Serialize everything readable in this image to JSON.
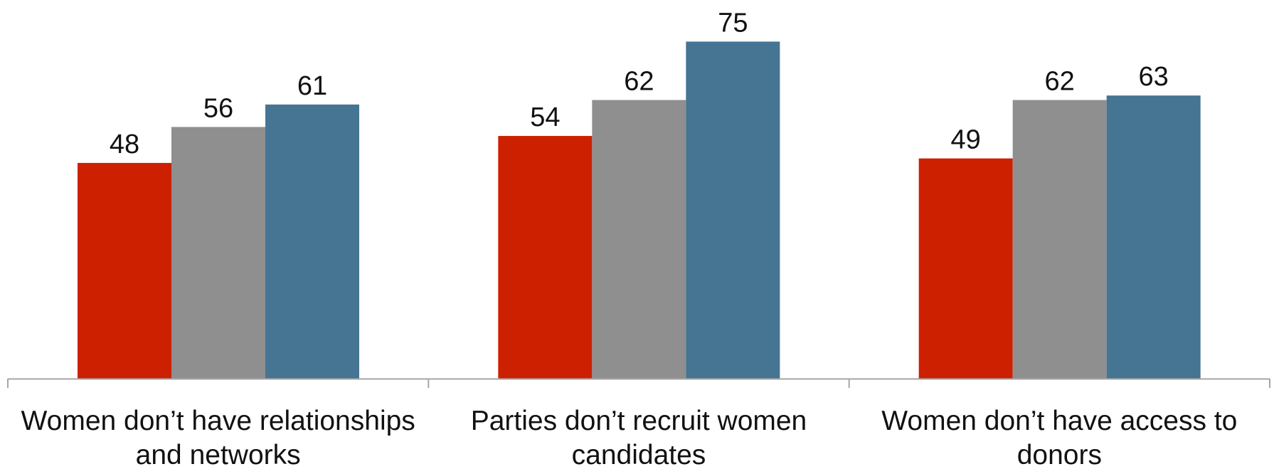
{
  "chart_data": {
    "type": "bar",
    "title": "",
    "xlabel": "",
    "ylabel": "",
    "ylim": [
      0,
      80
    ],
    "grid": false,
    "legend": "none",
    "categories": [
      [
        "Women don’t have relationships",
        "and networks"
      ],
      [
        "Parties don’t recruit women",
        "candidates"
      ],
      [
        "Women don’t have access to",
        "donors"
      ]
    ],
    "series": [
      {
        "values": [
          48,
          54,
          49
        ],
        "color": "#cc2000"
      },
      {
        "values": [
          56,
          62,
          62
        ],
        "color": "#8f8f8f"
      },
      {
        "values": [
          61,
          75,
          63
        ],
        "color": "#467493"
      }
    ],
    "axis_color": "#a6a6a6"
  }
}
